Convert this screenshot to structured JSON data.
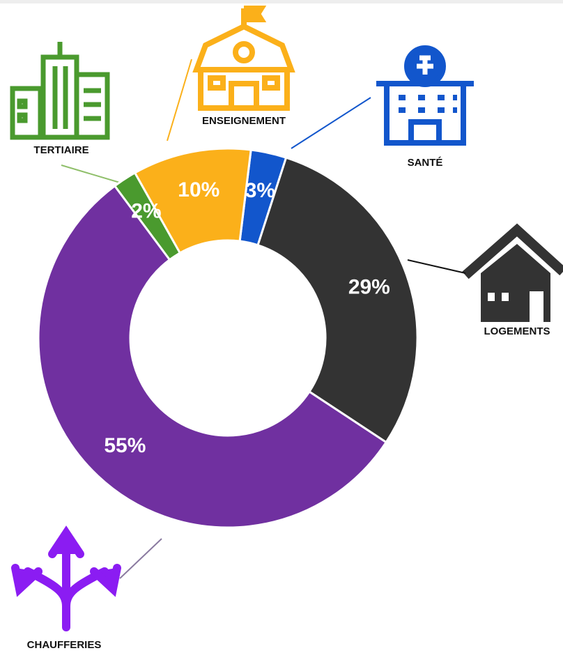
{
  "chart_data": {
    "type": "donut",
    "categories": [
      "SANTÉ",
      "LOGEMENTS",
      "CHAUFFERIES",
      "TERTIAIRE",
      "ENSEIGNEMENT"
    ],
    "values": [
      3,
      29,
      55,
      2,
      10
    ],
    "value_labels": [
      "3%",
      "29%",
      "55%",
      "2%",
      "10%"
    ],
    "colors": [
      "#1256cc",
      "#333333",
      "#7030a0",
      "#4a9a2e",
      "#fbb01a"
    ]
  }
}
